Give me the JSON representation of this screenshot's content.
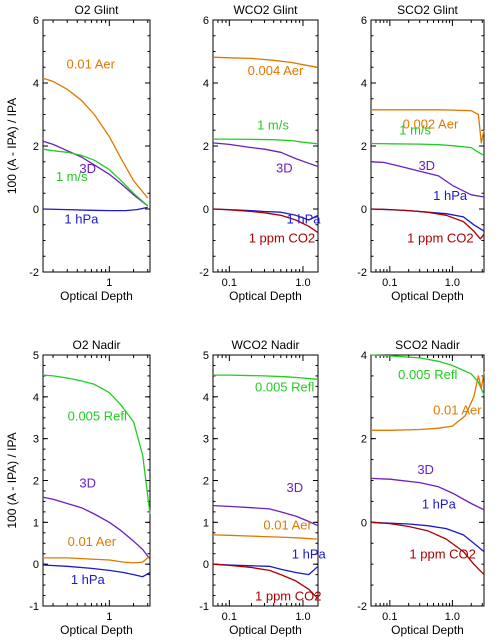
{
  "chart_data": [
    {
      "type": "line",
      "title": "O2 Glint",
      "xlabel": "Optical Depth",
      "ylabel": "100 (A - IPA) / IPA",
      "xscale": "log",
      "xlim": [
        0.15,
        3.2
      ],
      "ylim": [
        -2,
        6
      ],
      "yticks": [
        -2,
        0,
        2,
        4,
        6
      ],
      "xticks": [
        {
          "value": 1,
          "label": "1"
        }
      ],
      "series": [
        {
          "name": "0.01 Aer",
          "color": "#E07800",
          "x": [
            0.15,
            0.2,
            0.3,
            0.45,
            0.65,
            1.0,
            1.4,
            2.0,
            3.0
          ],
          "y": [
            4.15,
            4.05,
            3.8,
            3.45,
            3.0,
            2.3,
            1.6,
            0.9,
            0.35
          ]
        },
        {
          "name": "3D",
          "color": "#6A1FC0",
          "x": [
            0.15,
            0.2,
            0.3,
            0.45,
            0.65,
            1.0,
            1.4,
            2.0,
            3.0
          ],
          "y": [
            2.15,
            2.05,
            1.85,
            1.65,
            1.4,
            1.1,
            0.8,
            0.45,
            0.1
          ]
        },
        {
          "name": "1 m/s",
          "color": "#22CC22",
          "x": [
            0.15,
            0.2,
            0.3,
            0.45,
            0.65,
            1.0,
            1.4,
            2.0,
            3.0
          ],
          "y": [
            1.9,
            1.85,
            1.8,
            1.7,
            1.55,
            1.25,
            0.9,
            0.5,
            0.1
          ]
        },
        {
          "name": "1 hPa",
          "color": "#1A1ACC",
          "x": [
            0.15,
            0.3,
            0.6,
            1.0,
            1.6,
            2.2,
            3.0
          ],
          "y": [
            0.0,
            -0.02,
            -0.04,
            -0.05,
            -0.05,
            -0.02,
            0.05
          ]
        }
      ],
      "annotations": [
        {
          "text": "0.01 Aer",
          "series": 0
        },
        {
          "text": "3D",
          "series": 1
        },
        {
          "text": "1 m/s",
          "series": 2
        },
        {
          "text": "1 hPa",
          "series": 3
        }
      ]
    },
    {
      "type": "line",
      "title": "WCO2 Glint",
      "xlabel": "Optical Depth",
      "ylabel": "",
      "xscale": "log",
      "xlim": [
        0.06,
        1.6
      ],
      "ylim": [
        -2,
        6
      ],
      "yticks": [
        -2,
        0,
        2,
        4,
        6
      ],
      "xticks": [
        {
          "value": 0.1,
          "label": "0.1"
        },
        {
          "value": 1.0,
          "label": "1.0"
        }
      ],
      "series": [
        {
          "name": "0.004 Aer",
          "color": "#E07800",
          "x": [
            0.06,
            0.1,
            0.2,
            0.4,
            0.7,
            1.0,
            1.6
          ],
          "y": [
            4.82,
            4.8,
            4.78,
            4.72,
            4.65,
            4.58,
            4.5
          ]
        },
        {
          "name": "1 m/s",
          "color": "#22CC22",
          "x": [
            0.06,
            0.1,
            0.2,
            0.4,
            0.7,
            1.0,
            1.6
          ],
          "y": [
            2.22,
            2.22,
            2.21,
            2.2,
            2.17,
            2.12,
            2.07
          ]
        },
        {
          "name": "3D",
          "color": "#6A1FC0",
          "x": [
            0.06,
            0.1,
            0.2,
            0.3,
            0.5,
            0.8,
            1.2,
            1.6
          ],
          "y": [
            2.1,
            2.05,
            1.95,
            1.9,
            1.8,
            1.6,
            1.45,
            1.35
          ]
        },
        {
          "name": "1 hPa",
          "color": "#1A1ACC",
          "x": [
            0.06,
            0.1,
            0.2,
            0.3,
            0.5,
            0.8,
            1.2,
            1.6
          ],
          "y": [
            0.0,
            -0.02,
            -0.05,
            -0.08,
            -0.1,
            -0.2,
            -0.35,
            -0.2
          ]
        },
        {
          "name": "1 ppm CO2",
          "color": "#AA0000",
          "x": [
            0.06,
            0.1,
            0.2,
            0.3,
            0.5,
            0.8,
            1.2,
            1.6
          ],
          "y": [
            0.0,
            -0.03,
            -0.08,
            -0.12,
            -0.2,
            -0.35,
            -0.55,
            -0.75
          ]
        }
      ],
      "annotations": [
        {
          "text": "0.004 Aer",
          "series": 0
        },
        {
          "text": "1 m/s",
          "series": 1
        },
        {
          "text": "3D",
          "series": 2
        },
        {
          "text": "1 hPa",
          "series": 3
        },
        {
          "text": "1 ppm CO2",
          "series": 4
        }
      ]
    },
    {
      "type": "line",
      "title": "SCO2 Glint",
      "xlabel": "Optical Depth",
      "ylabel": "",
      "xscale": "log",
      "xlim": [
        0.05,
        3.2
      ],
      "ylim": [
        -2,
        6
      ],
      "yticks": [
        -2,
        0,
        2,
        4,
        6
      ],
      "xticks": [
        {
          "value": 0.1,
          "label": "0.1"
        },
        {
          "value": 1.0,
          "label": "1.0"
        }
      ],
      "series": [
        {
          "name": "0.002 Aer",
          "color": "#E07800",
          "x": [
            0.05,
            0.1,
            0.3,
            0.6,
            1.0,
            2.0,
            2.6,
            2.9,
            3.2
          ],
          "y": [
            3.15,
            3.15,
            3.15,
            3.15,
            3.14,
            3.12,
            3.0,
            2.1,
            2.5
          ]
        },
        {
          "name": "1 m/s",
          "color": "#22CC22",
          "x": [
            0.05,
            0.1,
            0.3,
            0.6,
            1.0,
            2.0,
            2.6,
            3.2
          ],
          "y": [
            2.08,
            2.07,
            2.06,
            2.04,
            2.01,
            1.95,
            1.8,
            1.7
          ]
        },
        {
          "name": "3D",
          "color": "#6A1FC0",
          "x": [
            0.05,
            0.08,
            0.15,
            0.3,
            0.6,
            1.0,
            2.0,
            3.2
          ],
          "y": [
            1.5,
            1.48,
            1.35,
            1.2,
            1.05,
            0.75,
            0.45,
            0.38
          ]
        },
        {
          "name": "1 hPa",
          "color": "#1A1ACC",
          "x": [
            0.05,
            0.1,
            0.2,
            0.4,
            0.8,
            1.5,
            2.2,
            3.2
          ],
          "y": [
            0.0,
            -0.02,
            -0.05,
            -0.1,
            -0.15,
            -0.25,
            -0.5,
            -0.7
          ]
        },
        {
          "name": "1 ppm CO2",
          "color": "#AA0000",
          "x": [
            0.05,
            0.1,
            0.2,
            0.4,
            0.8,
            1.5,
            2.2,
            2.8,
            3.2
          ],
          "y": [
            0.0,
            -0.02,
            -0.05,
            -0.1,
            -0.2,
            -0.4,
            -0.7,
            -0.95,
            -0.8
          ]
        }
      ],
      "annotations": [
        {
          "text": "0.002 Aer",
          "series": 0
        },
        {
          "text": "1 m/s",
          "series": 1
        },
        {
          "text": "3D",
          "series": 2
        },
        {
          "text": "1 hPa",
          "series": 3
        },
        {
          "text": "1 ppm CO2",
          "series": 4
        }
      ]
    },
    {
      "type": "line",
      "title": "O2 Nadir",
      "xlabel": "Optical Depth",
      "ylabel": "100 (A - IPA) / IPA",
      "xscale": "log",
      "xlim": [
        0.15,
        3.2
      ],
      "ylim": [
        -1,
        5
      ],
      "yticks": [
        -1,
        0,
        1,
        2,
        3,
        4,
        5
      ],
      "xticks": [
        {
          "value": 1,
          "label": "1"
        }
      ],
      "series": [
        {
          "name": "0.005 Refl",
          "color": "#22CC22",
          "x": [
            0.15,
            0.2,
            0.3,
            0.45,
            0.65,
            1.0,
            1.4,
            2.0,
            2.6,
            3.2
          ],
          "y": [
            4.52,
            4.5,
            4.45,
            4.38,
            4.3,
            4.1,
            3.8,
            3.4,
            2.6,
            1.2
          ]
        },
        {
          "name": "3D",
          "color": "#6A1FC0",
          "x": [
            0.15,
            0.2,
            0.3,
            0.45,
            0.65,
            1.0,
            1.4,
            2.0,
            2.6,
            3.2
          ],
          "y": [
            1.6,
            1.55,
            1.45,
            1.35,
            1.2,
            1.0,
            0.8,
            0.55,
            0.35,
            0.12
          ]
        },
        {
          "name": "0.01 Aer",
          "color": "#E07800",
          "x": [
            0.15,
            0.3,
            0.6,
            1.0,
            1.5,
            2.0,
            2.6,
            3.2
          ],
          "y": [
            0.15,
            0.15,
            0.12,
            0.1,
            0.05,
            0.03,
            0.05,
            0.2
          ]
        },
        {
          "name": "1 hPa",
          "color": "#1A1ACC",
          "x": [
            0.15,
            0.3,
            0.6,
            1.0,
            1.5,
            2.0,
            2.6,
            3.2
          ],
          "y": [
            -0.02,
            -0.05,
            -0.1,
            -0.15,
            -0.2,
            -0.25,
            -0.3,
            -0.2
          ]
        }
      ],
      "annotations": [
        {
          "text": "0.005 Refl",
          "series": 0
        },
        {
          "text": "3D",
          "series": 1
        },
        {
          "text": "0.01 Aer",
          "series": 2
        },
        {
          "text": "1 hPa",
          "series": 3
        }
      ]
    },
    {
      "type": "line",
      "title": "WCO2 Nadir",
      "xlabel": "Optical Depth",
      "ylabel": "",
      "xscale": "log",
      "xlim": [
        0.06,
        1.6
      ],
      "ylim": [
        -1,
        5
      ],
      "yticks": [
        -1,
        0,
        1,
        2,
        3,
        4,
        5
      ],
      "xticks": [
        {
          "value": 0.1,
          "label": "0.1"
        },
        {
          "value": 1.0,
          "label": "1.0"
        }
      ],
      "series": [
        {
          "name": "0.005 Refl",
          "color": "#22CC22",
          "x": [
            0.06,
            0.1,
            0.3,
            0.6,
            1.0,
            1.6
          ],
          "y": [
            4.52,
            4.52,
            4.5,
            4.48,
            4.45,
            4.42
          ]
        },
        {
          "name": "3D",
          "color": "#6A1FC0",
          "x": [
            0.06,
            0.1,
            0.2,
            0.35,
            0.5,
            0.8,
            1.2,
            1.6
          ],
          "y": [
            1.4,
            1.38,
            1.35,
            1.32,
            1.25,
            1.15,
            1.02,
            0.92
          ]
        },
        {
          "name": "0.01 Aer",
          "color": "#E07800",
          "x": [
            0.06,
            0.1,
            0.3,
            0.6,
            1.0,
            1.6
          ],
          "y": [
            0.7,
            0.69,
            0.66,
            0.64,
            0.62,
            0.6
          ]
        },
        {
          "name": "1 hPa",
          "color": "#1A1ACC",
          "x": [
            0.06,
            0.1,
            0.2,
            0.35,
            0.5,
            0.8,
            1.2,
            1.6
          ],
          "y": [
            0.0,
            -0.02,
            -0.04,
            -0.05,
            -0.12,
            -0.2,
            -0.25,
            -0.05
          ]
        },
        {
          "name": "1 ppm CO2",
          "color": "#AA0000",
          "x": [
            0.06,
            0.1,
            0.2,
            0.35,
            0.5,
            0.8,
            1.2,
            1.6
          ],
          "y": [
            0.0,
            -0.03,
            -0.08,
            -0.15,
            -0.25,
            -0.4,
            -0.6,
            -0.82
          ]
        }
      ],
      "annotations": [
        {
          "text": "0.005 Refl",
          "series": 0
        },
        {
          "text": "3D",
          "series": 1
        },
        {
          "text": "0.01 Aer",
          "series": 2
        },
        {
          "text": "1 hPa",
          "series": 3
        },
        {
          "text": "1 ppm CO2",
          "series": 4
        }
      ]
    },
    {
      "type": "line",
      "title": "SCO2 Nadir",
      "xlabel": "Optical Depth",
      "ylabel": "",
      "xscale": "log",
      "xlim": [
        0.05,
        3.2
      ],
      "ylim": [
        -2,
        4
      ],
      "yticks": [
        -2,
        0,
        2,
        4
      ],
      "xticks": [
        {
          "value": 0.1,
          "label": "0.1"
        },
        {
          "value": 1.0,
          "label": "1.0"
        }
      ],
      "series": [
        {
          "name": "0.005 Refl",
          "color": "#22CC22",
          "x": [
            0.05,
            0.1,
            0.3,
            0.6,
            1.0,
            2.0,
            2.6,
            3.2
          ],
          "y": [
            4.0,
            3.98,
            3.93,
            3.85,
            3.75,
            3.55,
            3.35,
            3.05
          ]
        },
        {
          "name": "0.01 Aer",
          "color": "#E07800",
          "x": [
            0.05,
            0.1,
            0.3,
            0.6,
            1.0,
            1.6,
            2.2,
            2.6,
            2.9,
            3.2
          ],
          "y": [
            2.2,
            2.2,
            2.22,
            2.25,
            2.3,
            2.55,
            3.0,
            3.5,
            3.2,
            3.6
          ]
        },
        {
          "name": "3D",
          "color": "#6A1FC0",
          "x": [
            0.05,
            0.1,
            0.3,
            0.6,
            1.0,
            2.0,
            3.2
          ],
          "y": [
            1.05,
            1.03,
            0.95,
            0.85,
            0.7,
            0.45,
            0.3
          ]
        },
        {
          "name": "1 hPa",
          "color": "#1A1ACC",
          "x": [
            0.05,
            0.1,
            0.2,
            0.4,
            0.8,
            1.5,
            2.2,
            3.2
          ],
          "y": [
            0.0,
            -0.02,
            -0.04,
            -0.08,
            -0.15,
            -0.3,
            -0.5,
            -0.7
          ]
        },
        {
          "name": "1 ppm CO2",
          "color": "#AA0000",
          "x": [
            0.05,
            0.1,
            0.2,
            0.4,
            0.8,
            1.5,
            2.2,
            3.2
          ],
          "y": [
            0.0,
            -0.03,
            -0.1,
            -0.2,
            -0.4,
            -0.7,
            -1.0,
            -1.25
          ]
        }
      ],
      "annotations": [
        {
          "text": "0.005 Refl",
          "series": 0
        },
        {
          "text": "0.01 Aer",
          "series": 1
        },
        {
          "text": "3D",
          "series": 2
        },
        {
          "text": "1 hPa",
          "series": 3
        },
        {
          "text": "1 ppm CO2",
          "series": 4
        }
      ]
    }
  ]
}
